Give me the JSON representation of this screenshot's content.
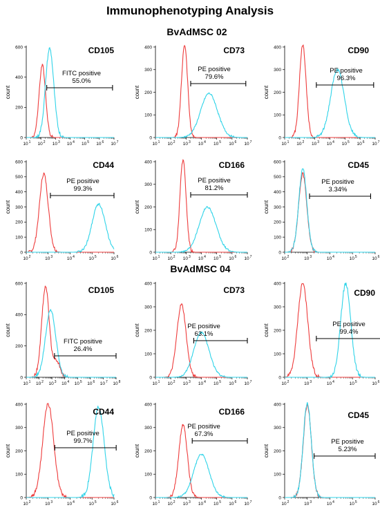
{
  "figure": {
    "title": "Immunophenotyping Analysis",
    "sections": [
      "BvAdMSC 02",
      "BvAdMSC 04"
    ]
  },
  "colors": {
    "control": "#ee3b3b",
    "stained": "#2ed3e8",
    "axis": "#000000"
  },
  "chart_data": [
    {
      "type": "area",
      "section": 0,
      "title": "CD105",
      "ylabel": "count",
      "ylim": [
        0,
        600
      ],
      "y_ticks": [
        0,
        200,
        400,
        600
      ],
      "x_scale": "log10",
      "xlim_exp": [
        1,
        7
      ],
      "gate": {
        "label": "FITC positive",
        "value": "55.0%",
        "from_exp": 2.4,
        "to_exp": 6.9
      },
      "series": [
        {
          "role": "control",
          "peak_exp": 2.1,
          "peak": 480,
          "width": 0.22
        },
        {
          "role": "stained",
          "peak_exp": 2.6,
          "peak": 590,
          "width": 0.28
        }
      ]
    },
    {
      "type": "area",
      "section": 0,
      "title": "CD73",
      "ylabel": "count",
      "ylim": [
        0,
        400
      ],
      "y_ticks": [
        0,
        100,
        200,
        300,
        400
      ],
      "x_scale": "log10",
      "xlim_exp": [
        1,
        7
      ],
      "gate": {
        "label": "PE positive",
        "value": "79.6%",
        "from_exp": 3.3,
        "to_exp": 6.9
      },
      "series": [
        {
          "role": "control",
          "peak_exp": 2.9,
          "peak": 410,
          "width": 0.2
        },
        {
          "role": "stained",
          "peak_exp": 4.5,
          "peak": 195,
          "width": 0.55
        }
      ]
    },
    {
      "type": "area",
      "section": 0,
      "title": "CD90",
      "ylabel": "count",
      "ylim": [
        0,
        400
      ],
      "y_ticks": [
        0,
        100,
        200,
        300,
        400
      ],
      "x_scale": "log10",
      "xlim_exp": [
        1,
        7
      ],
      "gate": {
        "label": "PE positive",
        "value": "96.3%",
        "from_exp": 3.1,
        "to_exp": 6.9
      },
      "series": [
        {
          "role": "control",
          "peak_exp": 2.2,
          "peak": 410,
          "width": 0.22
        },
        {
          "role": "stained",
          "peak_exp": 4.5,
          "peak": 300,
          "width": 0.45
        }
      ]
    },
    {
      "type": "area",
      "section": 0,
      "title": "CD44",
      "ylabel": "count",
      "ylim": [
        0,
        600
      ],
      "y_ticks": [
        0,
        100,
        200,
        300,
        400,
        500,
        600
      ],
      "x_scale": "log10",
      "xlim_exp": [
        2,
        6
      ],
      "gate": {
        "label": "PE positive",
        "value": "99.3%",
        "from_exp": 3.1,
        "to_exp": 6.0
      },
      "series": [
        {
          "role": "control",
          "peak_exp": 2.8,
          "peak": 520,
          "width": 0.2
        },
        {
          "role": "stained",
          "peak_exp": 5.3,
          "peak": 320,
          "width": 0.3
        }
      ]
    },
    {
      "type": "area",
      "section": 0,
      "title": "CD166",
      "ylabel": "count",
      "ylim": [
        0,
        400
      ],
      "y_ticks": [
        0,
        100,
        200,
        300,
        400
      ],
      "x_scale": "log10",
      "xlim_exp": [
        1,
        7
      ],
      "gate": {
        "label": "PE positive",
        "value": "81.2%",
        "from_exp": 3.3,
        "to_exp": 7.0
      },
      "series": [
        {
          "role": "control",
          "peak_exp": 2.8,
          "peak": 410,
          "width": 0.2
        },
        {
          "role": "stained",
          "peak_exp": 4.4,
          "peak": 200,
          "width": 0.55
        }
      ]
    },
    {
      "type": "area",
      "section": 0,
      "title": "CD45",
      "ylabel": "count",
      "ylim": [
        0,
        600
      ],
      "y_ticks": [
        0,
        100,
        200,
        300,
        400,
        500,
        600
      ],
      "x_scale": "log10",
      "xlim_exp": [
        2,
        6
      ],
      "gate": {
        "label": "PE positive",
        "value": "3.34%",
        "from_exp": 3.1,
        "to_exp": 5.8
      },
      "series": [
        {
          "role": "control",
          "peak_exp": 2.8,
          "peak": 520,
          "width": 0.18
        },
        {
          "role": "stained",
          "peak_exp": 2.8,
          "peak": 550,
          "width": 0.18
        }
      ]
    },
    {
      "type": "area",
      "section": 1,
      "title": "CD105",
      "ylabel": "count",
      "ylim": [
        0,
        600
      ],
      "y_ticks": [
        0,
        200,
        400,
        600
      ],
      "x_scale": "log10",
      "xlim_exp": [
        1,
        8
      ],
      "gate": {
        "label": "FITC positive",
        "value": "26.4%",
        "from_exp": 3.2,
        "to_exp": 8.0
      },
      "series": [
        {
          "role": "control",
          "peak_exp": 2.5,
          "peak": 580,
          "width": 0.3,
          "second_peak_exp": 3.4,
          "second_peak": 100
        },
        {
          "role": "stained",
          "peak_exp": 2.9,
          "peak": 430,
          "width": 0.4
        }
      ]
    },
    {
      "type": "area",
      "section": 1,
      "title": "CD73",
      "ylabel": "count",
      "ylim": [
        0,
        400
      ],
      "y_ticks": [
        0,
        100,
        200,
        300,
        400
      ],
      "x_scale": "log10",
      "xlim_exp": [
        1,
        7
      ],
      "gate": {
        "label": "PE positive",
        "value": "63.1%",
        "from_exp": 3.5,
        "to_exp": 7.0
      },
      "series": [
        {
          "role": "control",
          "peak_exp": 2.7,
          "peak": 310,
          "width": 0.3
        },
        {
          "role": "stained",
          "peak_exp": 4.0,
          "peak": 190,
          "width": 0.5
        }
      ]
    },
    {
      "type": "area",
      "section": 1,
      "title": "CD90",
      "ylabel": "count",
      "ylim": [
        0,
        400
      ],
      "y_ticks": [
        0,
        100,
        200,
        300,
        400
      ],
      "x_scale": "log10",
      "xlim_exp": [
        2,
        6
      ],
      "gate": {
        "label": "PE positive",
        "value": "99.4%",
        "from_exp": 3.4,
        "to_exp": 6.3
      },
      "series": [
        {
          "role": "control",
          "peak_exp": 2.8,
          "peak": 400,
          "width": 0.22
        },
        {
          "role": "stained",
          "peak_exp": 4.7,
          "peak": 400,
          "width": 0.22
        }
      ]
    },
    {
      "type": "area",
      "section": 1,
      "title": "CD44",
      "ylabel": "count",
      "ylim": [
        0,
        400
      ],
      "y_ticks": [
        0,
        100,
        200,
        300,
        400
      ],
      "x_scale": "log10",
      "xlim_exp": [
        2,
        6
      ],
      "gate": {
        "label": "PE positive",
        "value": "99.7%",
        "from_exp": 3.3,
        "to_exp": 6.1
      },
      "series": [
        {
          "role": "control",
          "peak_exp": 3.0,
          "peak": 400,
          "width": 0.25
        },
        {
          "role": "stained",
          "peak_exp": 5.3,
          "peak": 390,
          "width": 0.25
        }
      ]
    },
    {
      "type": "area",
      "section": 1,
      "title": "CD166",
      "ylabel": "count",
      "ylim": [
        0,
        400
      ],
      "y_ticks": [
        0,
        100,
        200,
        300,
        400
      ],
      "x_scale": "log10",
      "xlim_exp": [
        1,
        7
      ],
      "gate": {
        "label": "PE positive",
        "value": "67.3%",
        "from_exp": 3.4,
        "to_exp": 7.0
      },
      "series": [
        {
          "role": "control",
          "peak_exp": 2.8,
          "peak": 310,
          "width": 0.28
        },
        {
          "role": "stained",
          "peak_exp": 4.0,
          "peak": 185,
          "width": 0.5
        }
      ]
    },
    {
      "type": "area",
      "section": 1,
      "title": "CD45",
      "ylabel": "count",
      "ylim": [
        0,
        400
      ],
      "y_ticks": [
        0,
        100,
        200,
        300,
        400
      ],
      "x_scale": "log10",
      "xlim_exp": [
        2,
        6
      ],
      "gate": {
        "label": "PE positive",
        "value": "5.23%",
        "from_exp": 3.3,
        "to_exp": 6.0
      },
      "series": [
        {
          "role": "control",
          "peak_exp": 3.0,
          "peak": 395,
          "width": 0.18
        },
        {
          "role": "stained",
          "peak_exp": 3.0,
          "peak": 405,
          "width": 0.18
        }
      ]
    }
  ]
}
